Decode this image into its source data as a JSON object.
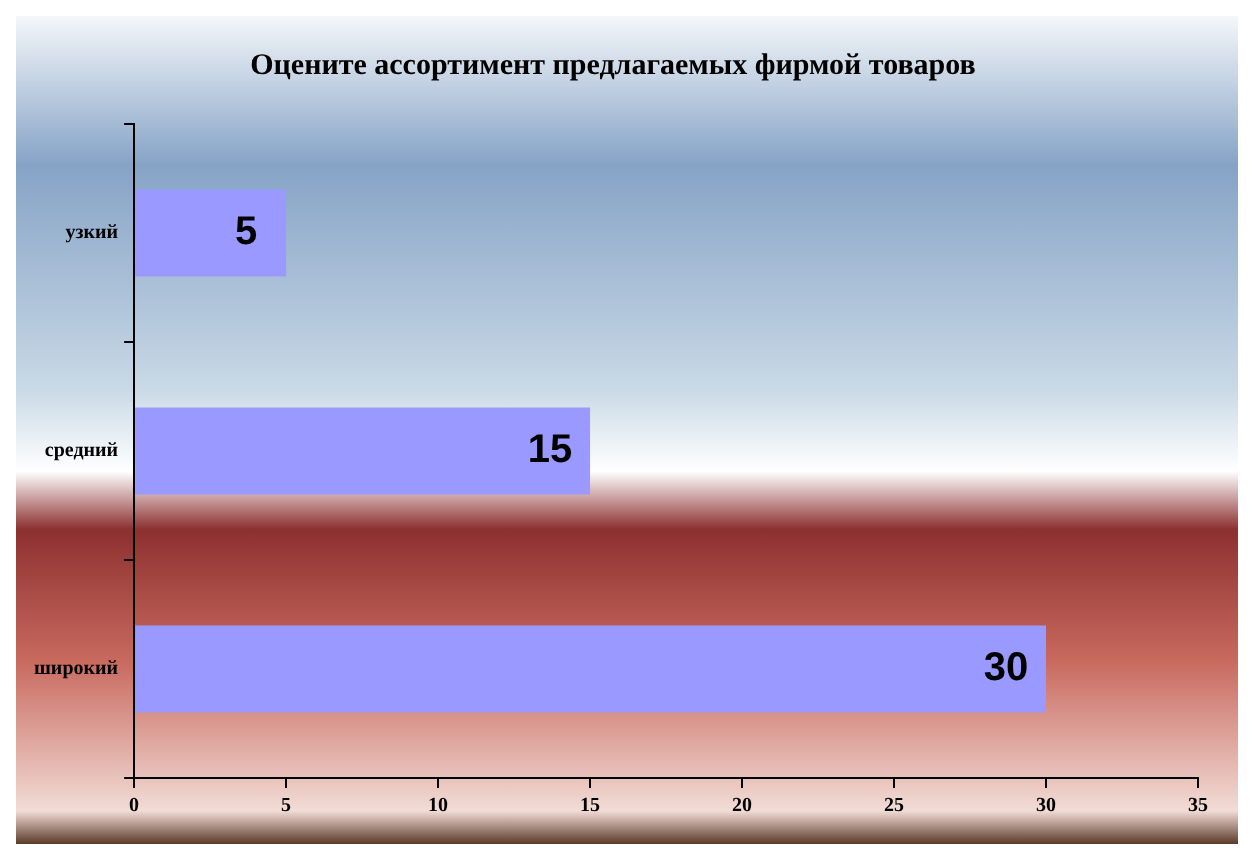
{
  "chart_data": {
    "type": "bar",
    "orientation": "horizontal",
    "title": "Оцените ассортимент предлагаемых фирмой товаров",
    "categories": [
      "узкий",
      "средний",
      "широкий"
    ],
    "values": [
      5,
      15,
      30
    ],
    "color": "#9999ff",
    "xlim": [
      0,
      35
    ],
    "xticks": [
      0,
      5,
      10,
      15,
      20,
      25,
      30,
      35
    ],
    "grid": false,
    "legend": false,
    "data_labels": true
  }
}
